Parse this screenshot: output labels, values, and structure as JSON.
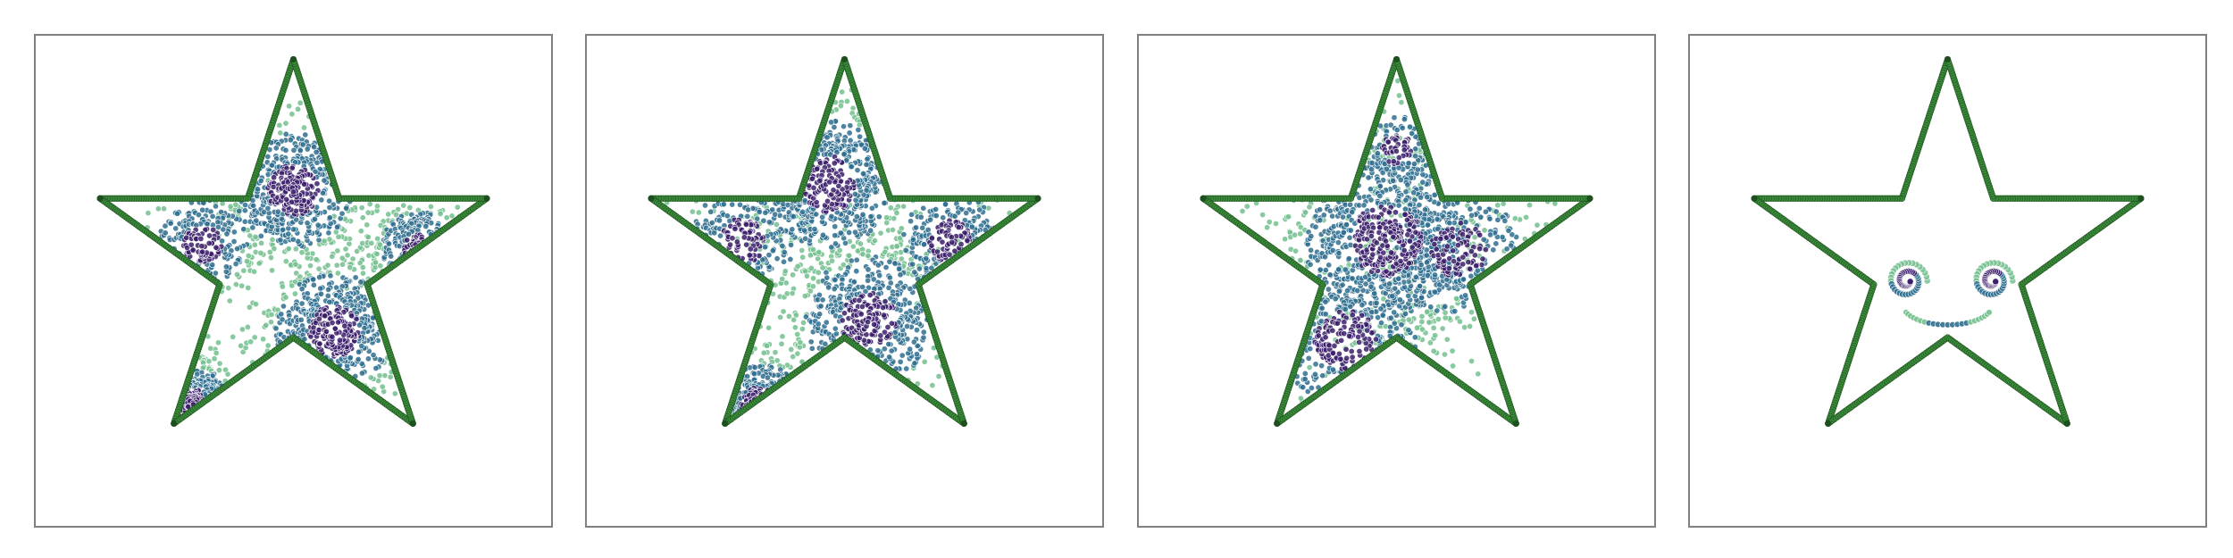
{
  "chart_data": [
    {
      "type": "scatter",
      "title": "",
      "xlabel": "",
      "ylabel": "",
      "xlim": [
        -1.25,
        1.25
      ],
      "ylim": [
        -1.3,
        1.1
      ],
      "grid": false,
      "colors": {
        "dense": "#3b1f6b",
        "mid": "#2f6f8f",
        "light": "#74c08f",
        "outline": "#3a8c3a",
        "outline_edge": "#1e4f1e"
      },
      "star_outline": {
        "points": 5,
        "outer_radius": 1.0,
        "inner_radius": 0.382
      },
      "series": [
        {
          "name": "outline",
          "role": "boundary"
        },
        {
          "name": "particles",
          "role": "cloud",
          "clusters": [
            {
              "x": 0.0,
              "y": 0.35,
              "spread": 0.18,
              "count": 520
            },
            {
              "x": 0.2,
              "y": -0.35,
              "spread": 0.18,
              "count": 520
            },
            {
              "x": 0.62,
              "y": 0.05,
              "spread": 0.12,
              "count": 200
            },
            {
              "x": -0.45,
              "y": 0.08,
              "spread": 0.14,
              "count": 230
            },
            {
              "x": -0.5,
              "y": -0.72,
              "spread": 0.12,
              "count": 180
            }
          ]
        }
      ]
    },
    {
      "type": "scatter",
      "title": "",
      "xlabel": "",
      "ylabel": "",
      "xlim": [
        -1.25,
        1.25
      ],
      "ylim": [
        -1.3,
        1.1
      ],
      "grid": false,
      "colors": {
        "dense": "#3b1f6b",
        "mid": "#2f6f8f",
        "light": "#74c08f",
        "outline": "#3a8c3a",
        "outline_edge": "#1e4f1e"
      },
      "star_outline": {
        "points": 5,
        "outer_radius": 1.0,
        "inner_radius": 0.382
      },
      "series": [
        {
          "name": "outline",
          "role": "boundary"
        },
        {
          "name": "particles",
          "role": "cloud",
          "clusters": [
            {
              "x": -0.08,
              "y": 0.38,
              "spread": 0.2,
              "count": 540
            },
            {
              "x": 0.12,
              "y": -0.3,
              "spread": 0.2,
              "count": 520
            },
            {
              "x": 0.52,
              "y": 0.1,
              "spread": 0.15,
              "count": 220
            },
            {
              "x": -0.5,
              "y": 0.1,
              "spread": 0.16,
              "count": 220
            },
            {
              "x": -0.42,
              "y": -0.72,
              "spread": 0.13,
              "count": 170
            }
          ]
        }
      ]
    },
    {
      "type": "scatter",
      "title": "",
      "xlabel": "",
      "ylabel": "",
      "xlim": [
        -1.25,
        1.25
      ],
      "ylim": [
        -1.3,
        1.1
      ],
      "grid": false,
      "colors": {
        "dense": "#3b1f6b",
        "mid": "#2f6f8f",
        "light": "#74c08f",
        "outline": "#3a8c3a",
        "outline_edge": "#1e4f1e"
      },
      "star_outline": {
        "points": 5,
        "outer_radius": 1.0,
        "inner_radius": 0.382
      },
      "series": [
        {
          "name": "outline",
          "role": "boundary"
        },
        {
          "name": "particles",
          "role": "cloud",
          "clusters": [
            {
              "x": -0.05,
              "y": 0.1,
              "spread": 0.25,
              "count": 900
            },
            {
              "x": 0.3,
              "y": 0.05,
              "spread": 0.2,
              "count": 320
            },
            {
              "x": -0.25,
              "y": -0.4,
              "spread": 0.22,
              "count": 340
            },
            {
              "x": 0.0,
              "y": 0.55,
              "spread": 0.12,
              "count": 130
            }
          ]
        }
      ]
    },
    {
      "type": "scatter",
      "title": "",
      "xlabel": "",
      "ylabel": "",
      "xlim": [
        -1.25,
        1.25
      ],
      "ylim": [
        -1.3,
        1.1
      ],
      "grid": false,
      "colors": {
        "dense": "#3b1f6b",
        "mid": "#2f6f8f",
        "light": "#74c08f",
        "outline": "#3a8c3a",
        "outline_edge": "#1e4f1e"
      },
      "star_outline": {
        "points": 5,
        "outer_radius": 1.0,
        "inner_radius": 0.382
      },
      "series": [
        {
          "name": "outline",
          "role": "boundary"
        },
        {
          "name": "left-eye",
          "role": "spiral",
          "x": -0.2,
          "y": -0.1,
          "radius": 0.1
        },
        {
          "name": "right-eye",
          "role": "spiral",
          "x": 0.22,
          "y": -0.1,
          "radius": 0.1
        },
        {
          "name": "smile",
          "role": "arc",
          "x": 0.0,
          "y": -0.22,
          "radius": 0.22
        }
      ]
    }
  ]
}
